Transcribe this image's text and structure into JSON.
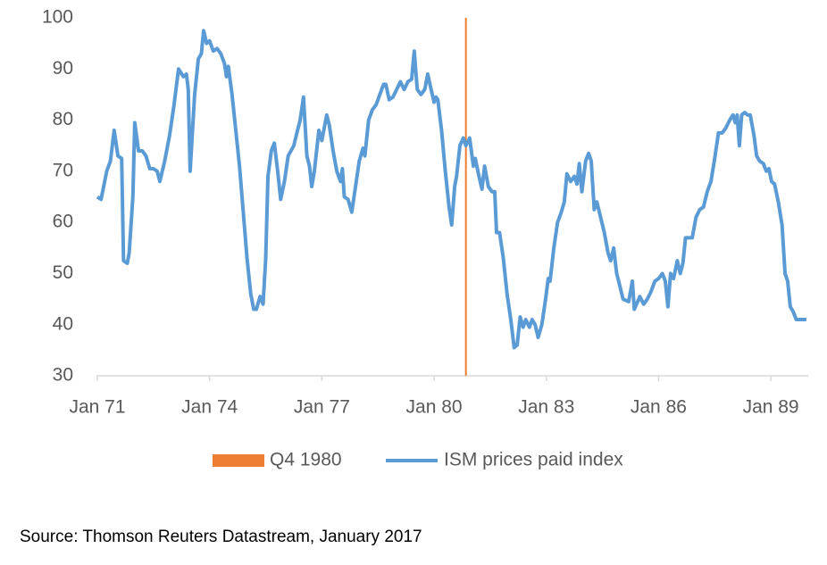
{
  "chart_data": {
    "type": "line",
    "xlim": [
      1971,
      1990
    ],
    "ylim": [
      30,
      100
    ],
    "yticks": [
      30,
      40,
      50,
      60,
      70,
      80,
      90,
      100
    ],
    "xticks": [
      {
        "value": 1971,
        "label": "Jan 71"
      },
      {
        "value": 1974,
        "label": "Jan 74"
      },
      {
        "value": 1977,
        "label": "Jan 77"
      },
      {
        "value": 1980,
        "label": "Jan 80"
      },
      {
        "value": 1983,
        "label": "Jan 83"
      },
      {
        "value": 1986,
        "label": "Jan 86"
      },
      {
        "value": 1989,
        "label": "Jan 89"
      }
    ],
    "grid": false,
    "legend": "bottom",
    "markers": [
      {
        "name": "Q4 1980",
        "x": 1980.85,
        "color": "#ed7d31"
      }
    ],
    "x": [
      1971.0,
      1971.1,
      1971.25,
      1971.35,
      1971.45,
      1971.55,
      1971.65,
      1971.7,
      1971.8,
      1971.85,
      1971.95,
      1972.0,
      1972.1,
      1972.2,
      1972.3,
      1972.4,
      1972.5,
      1972.6,
      1972.67,
      1972.8,
      1972.93,
      1973.05,
      1973.17,
      1973.3,
      1973.38,
      1973.43,
      1973.48,
      1973.6,
      1973.7,
      1973.78,
      1973.84,
      1973.92,
      1974.0,
      1974.1,
      1974.2,
      1974.3,
      1974.4,
      1974.45,
      1974.5,
      1974.6,
      1974.7,
      1974.8,
      1974.9,
      1975.0,
      1975.1,
      1975.18,
      1975.25,
      1975.35,
      1975.43,
      1975.5,
      1975.56,
      1975.65,
      1975.73,
      1975.82,
      1975.9,
      1976.0,
      1976.1,
      1976.25,
      1976.35,
      1976.42,
      1976.51,
      1976.6,
      1976.67,
      1976.73,
      1976.8,
      1976.92,
      1977.0,
      1977.13,
      1977.2,
      1977.3,
      1977.4,
      1977.5,
      1977.55,
      1977.6,
      1977.7,
      1977.8,
      1977.9,
      1978.0,
      1978.1,
      1978.15,
      1978.25,
      1978.35,
      1978.45,
      1978.55,
      1978.65,
      1978.71,
      1978.8,
      1978.9,
      1979.0,
      1979.1,
      1979.2,
      1979.3,
      1979.4,
      1979.47,
      1979.55,
      1979.65,
      1979.75,
      1979.83,
      1979.92,
      1980.0,
      1980.05,
      1980.1,
      1980.2,
      1980.3,
      1980.4,
      1980.47,
      1980.55,
      1980.6,
      1980.69,
      1980.78,
      1980.85,
      1980.95,
      1981.05,
      1981.1,
      1981.2,
      1981.28,
      1981.35,
      1981.45,
      1981.55,
      1981.62,
      1981.67,
      1981.75,
      1981.85,
      1981.95,
      1982.05,
      1982.14,
      1982.22,
      1982.3,
      1982.38,
      1982.45,
      1982.55,
      1982.62,
      1982.7,
      1982.78,
      1982.88,
      1982.98,
      1983.05,
      1983.1,
      1983.2,
      1983.3,
      1983.4,
      1983.48,
      1983.55,
      1983.65,
      1983.75,
      1983.82,
      1983.88,
      1983.95,
      1984.05,
      1984.13,
      1984.2,
      1984.28,
      1984.35,
      1984.45,
      1984.55,
      1984.65,
      1984.72,
      1984.8,
      1984.88,
      1984.95,
      1985.05,
      1985.2,
      1985.3,
      1985.35,
      1985.5,
      1985.6,
      1985.7,
      1985.8,
      1985.9,
      1986.0,
      1986.1,
      1986.18,
      1986.25,
      1986.32,
      1986.4,
      1986.5,
      1986.58,
      1986.65,
      1986.72,
      1986.8,
      1986.9,
      1987.0,
      1987.1,
      1987.2,
      1987.3,
      1987.4,
      1987.5,
      1987.6,
      1987.7,
      1987.8,
      1987.9,
      1987.99,
      1988.05,
      1988.1,
      1988.16,
      1988.22,
      1988.3,
      1988.38,
      1988.45,
      1988.55,
      1988.62,
      1988.7,
      1988.8,
      1988.88,
      1988.95,
      1989.02,
      1989.1,
      1989.2,
      1989.3,
      1989.38,
      1989.45,
      1989.52,
      1989.6,
      1989.68,
      1989.8,
      1989.95
    ],
    "series": [
      {
        "name": "ISM prices paid index",
        "color": "#5b9bd5",
        "values": [
          65,
          64.5,
          70,
          72,
          78,
          73,
          72.5,
          52.5,
          52,
          54,
          65,
          79.5,
          74,
          74,
          73,
          70.5,
          70.5,
          70,
          68,
          72,
          77,
          83,
          90,
          88.5,
          89,
          86,
          70,
          85,
          92,
          93,
          97.5,
          95,
          95.5,
          93.5,
          94,
          93,
          91,
          88.5,
          90.5,
          85,
          78,
          71,
          62,
          53,
          46,
          43,
          43,
          45.5,
          44,
          53,
          69,
          74,
          75.5,
          70,
          64.5,
          68,
          73,
          75,
          78,
          80,
          84.5,
          73,
          71,
          67,
          70,
          78,
          76,
          81,
          79,
          74,
          70,
          68,
          70.5,
          65,
          64.5,
          62,
          67,
          72,
          74.5,
          73,
          80,
          82,
          83,
          85,
          87,
          87,
          84,
          84.5,
          86,
          87.5,
          86,
          87.5,
          88,
          93.5,
          86,
          85,
          86,
          89,
          86,
          83.5,
          84.5,
          84,
          78,
          70,
          63,
          59.5,
          67,
          69,
          75,
          76.5,
          75,
          76.5,
          71,
          72.5,
          69,
          66.5,
          71,
          67,
          66,
          66,
          58,
          58,
          53,
          46,
          41,
          35.5,
          36,
          41.5,
          39.5,
          41,
          39.5,
          41,
          40,
          37.5,
          40,
          45,
          49,
          48.5,
          55,
          60,
          62,
          64,
          69.5,
          68,
          69,
          67.5,
          71.5,
          66,
          72,
          73.5,
          72,
          62.5,
          64,
          61,
          58,
          54,
          52.5,
          55,
          50,
          48,
          45,
          44.5,
          48.5,
          43,
          45.5,
          44,
          45,
          46.5,
          48.5,
          49,
          50,
          48.5,
          43.5,
          50,
          49,
          52.5,
          50,
          52,
          57,
          57,
          57,
          61,
          62.5,
          63,
          66,
          68,
          72.5,
          77.5,
          77.5,
          78.5,
          80,
          81,
          79.5,
          81,
          75,
          81,
          81.5,
          81,
          81,
          77,
          73,
          72,
          71.5,
          70,
          70.5,
          68,
          67.5,
          64,
          59.5,
          50,
          48.5,
          43.5,
          42.5,
          41,
          41,
          41
        ]
      }
    ],
    "source": "Source: Thomson Reuters Datastream, January 2017"
  }
}
